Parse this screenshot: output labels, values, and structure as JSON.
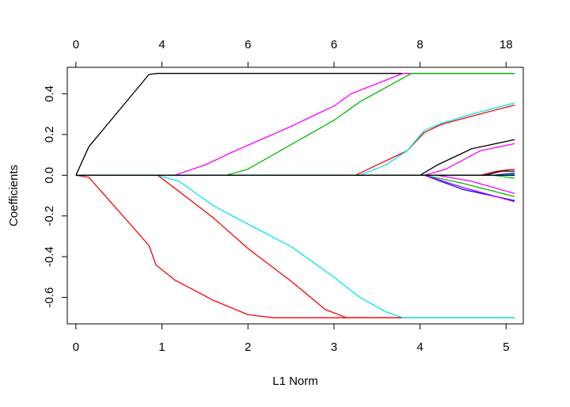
{
  "chart_data": {
    "type": "line",
    "title": "",
    "xlabel": "L1 Norm",
    "ylabel": "Coefficients",
    "xlim": [
      -0.1,
      5.2
    ],
    "ylim": [
      -0.73,
      0.53
    ],
    "x_ticks": [
      0,
      1,
      2,
      3,
      4,
      5
    ],
    "y_ticks": [
      -0.6,
      -0.4,
      -0.2,
      0.0,
      0.2,
      0.4
    ],
    "y_tick_labels": [
      "-0.6",
      "-0.4",
      "-0.2",
      "0.0",
      "0.2",
      "0.4"
    ],
    "top_axis": {
      "positions": [
        0,
        1,
        2,
        3,
        4,
        5
      ],
      "labels": [
        "0",
        "4",
        "6",
        "6",
        "8",
        "18"
      ]
    },
    "grid": false,
    "series": [
      {
        "color": "#000000",
        "points": [
          [
            0,
            0
          ],
          [
            0.15,
            0.14
          ],
          [
            0.85,
            0.495
          ],
          [
            0.95,
            0.5
          ],
          [
            5.1,
            0.5
          ]
        ]
      },
      {
        "color": "#ff0000",
        "points": [
          [
            0,
            0
          ],
          [
            0.15,
            -0.01
          ],
          [
            0.85,
            -0.345
          ],
          [
            0.93,
            -0.44
          ],
          [
            1.15,
            -0.515
          ],
          [
            1.6,
            -0.615
          ],
          [
            2.0,
            -0.685
          ],
          [
            2.3,
            -0.7
          ],
          [
            5.1,
            -0.7
          ]
        ]
      },
      {
        "color": "#ff00ff",
        "points": [
          [
            0,
            0
          ],
          [
            1.15,
            0
          ],
          [
            1.5,
            0.05
          ],
          [
            1.8,
            0.11
          ],
          [
            2.5,
            0.24
          ],
          [
            3.0,
            0.34
          ],
          [
            3.2,
            0.4
          ],
          [
            3.5,
            0.45
          ],
          [
            3.8,
            0.5
          ],
          [
            5.1,
            0.5
          ]
        ]
      },
      {
        "color": "#00bb00",
        "points": [
          [
            0,
            0
          ],
          [
            1.75,
            0
          ],
          [
            2.0,
            0.03
          ],
          [
            2.5,
            0.15
          ],
          [
            3.0,
            0.27
          ],
          [
            3.3,
            0.36
          ],
          [
            3.6,
            0.43
          ],
          [
            3.9,
            0.5
          ],
          [
            5.1,
            0.5
          ]
        ]
      },
      {
        "color": "#ff0000",
        "points": [
          [
            0,
            0
          ],
          [
            0.95,
            0
          ],
          [
            1.2,
            -0.08
          ],
          [
            1.6,
            -0.21
          ],
          [
            2.0,
            -0.36
          ],
          [
            2.5,
            -0.52
          ],
          [
            2.9,
            -0.66
          ],
          [
            3.15,
            -0.7
          ],
          [
            5.1,
            -0.7
          ]
        ]
      },
      {
        "color": "#00e5ee",
        "points": [
          [
            0,
            0
          ],
          [
            0.95,
            0
          ],
          [
            1.2,
            -0.03
          ],
          [
            1.6,
            -0.15
          ],
          [
            2.0,
            -0.24
          ],
          [
            2.5,
            -0.35
          ],
          [
            3.0,
            -0.5
          ],
          [
            3.3,
            -0.6
          ],
          [
            3.6,
            -0.67
          ],
          [
            3.8,
            -0.7
          ],
          [
            5.1,
            -0.7
          ]
        ]
      },
      {
        "color": "#ff0000",
        "points": [
          [
            0,
            0
          ],
          [
            3.25,
            0
          ],
          [
            3.5,
            0.05
          ],
          [
            3.85,
            0.12
          ],
          [
            4.05,
            0.21
          ],
          [
            4.25,
            0.25
          ],
          [
            4.6,
            0.29
          ],
          [
            5.1,
            0.345
          ]
        ]
      },
      {
        "color": "#00e5ee",
        "points": [
          [
            0,
            0
          ],
          [
            3.3,
            0
          ],
          [
            3.6,
            0.05
          ],
          [
            3.85,
            0.12
          ],
          [
            4.05,
            0.22
          ],
          [
            4.25,
            0.255
          ],
          [
            4.6,
            0.3
          ],
          [
            5.1,
            0.355
          ]
        ]
      },
      {
        "color": "#000000",
        "points": [
          [
            0,
            0
          ],
          [
            4.0,
            0
          ],
          [
            4.2,
            0.05
          ],
          [
            4.6,
            0.13
          ],
          [
            5.1,
            0.175
          ]
        ]
      },
      {
        "color": "#ff00ff",
        "points": [
          [
            0,
            0
          ],
          [
            4.05,
            0
          ],
          [
            4.3,
            0.03
          ],
          [
            4.7,
            0.12
          ],
          [
            5.1,
            0.155
          ]
        ]
      },
      {
        "color": "#00bb00",
        "points": [
          [
            0,
            0
          ],
          [
            4.05,
            0
          ],
          [
            4.5,
            -0.04
          ],
          [
            5.1,
            -0.105
          ]
        ]
      },
      {
        "color": "#0000ff",
        "points": [
          [
            0,
            0
          ],
          [
            4.05,
            0
          ],
          [
            4.5,
            -0.07
          ],
          [
            5.1,
            -0.125
          ]
        ]
      },
      {
        "color": "#aa00ff",
        "points": [
          [
            0,
            0
          ],
          [
            4.05,
            0
          ],
          [
            4.5,
            -0.06
          ],
          [
            5.1,
            -0.13
          ]
        ]
      },
      {
        "color": "#ff00ff",
        "points": [
          [
            0,
            0
          ],
          [
            4.2,
            0
          ],
          [
            4.6,
            -0.03
          ],
          [
            5.1,
            -0.09
          ]
        ]
      },
      {
        "color": "#00bb00",
        "points": [
          [
            0,
            0
          ],
          [
            4.85,
            0
          ],
          [
            5.1,
            -0.015
          ]
        ]
      },
      {
        "color": "#ff0000",
        "points": [
          [
            0,
            0
          ],
          [
            4.7,
            0
          ],
          [
            4.9,
            0.02
          ],
          [
            5.1,
            0.03
          ]
        ]
      },
      {
        "color": "#000000",
        "points": [
          [
            0,
            0
          ],
          [
            4.75,
            0
          ],
          [
            4.95,
            0.02
          ],
          [
            5.1,
            0.02
          ]
        ]
      },
      {
        "color": "#0000ff",
        "points": [
          [
            0,
            0
          ],
          [
            4.85,
            0
          ],
          [
            5.1,
            0.01
          ]
        ]
      },
      {
        "color": "#00e5ee",
        "points": [
          [
            0,
            0
          ],
          [
            4.9,
            0
          ],
          [
            5.1,
            0.005
          ]
        ]
      },
      {
        "color": "#000000",
        "points": [
          [
            0,
            0
          ],
          [
            5.1,
            0
          ]
        ]
      }
    ]
  }
}
